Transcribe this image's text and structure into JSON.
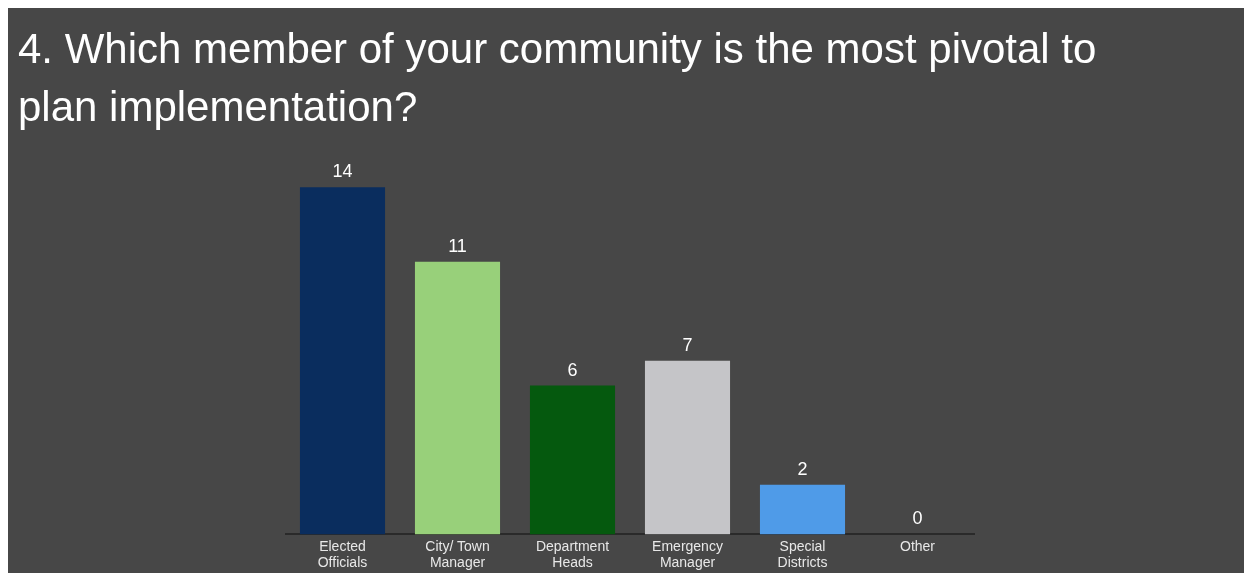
{
  "chart_data": {
    "type": "bar",
    "title": "4. Which member of your community is the most pivotal to plan implementation?",
    "categories": [
      "Elected Officials",
      "City/ Town Manager",
      "Department Heads",
      "Emergency Manager",
      "Special Districts",
      "Other"
    ],
    "values": [
      14,
      11,
      6,
      7,
      2,
      0
    ],
    "colors": [
      "#0a2d5e",
      "#98d07a",
      "#05590e",
      "#c5c5c8",
      "#4f9be8",
      "#8a8a8a"
    ],
    "data_labels": true,
    "grid": false,
    "legend": false
  }
}
